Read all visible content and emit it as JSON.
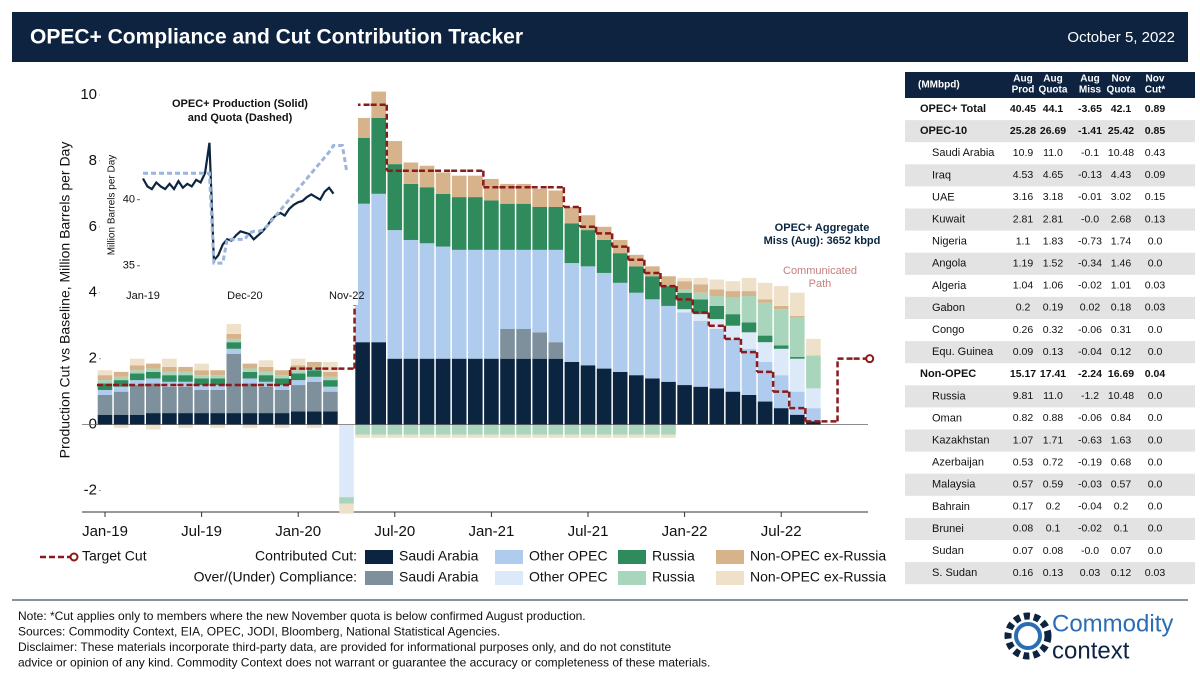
{
  "header": {
    "title": "OPEC+ Compliance and Cut Contribution Tracker",
    "date": "October 5, 2022"
  },
  "chart_data": [
    {
      "type": "stacked-bar",
      "ylabel": "Production Cut vs Baseline, Million Barrels per Day",
      "categories": [
        "Jan-19",
        null,
        null,
        null,
        null,
        null,
        "Jul-19",
        null,
        null,
        null,
        null,
        null,
        "Jan-20",
        null,
        null,
        null,
        null,
        null,
        "Jul-20",
        null,
        null,
        null,
        null,
        null,
        "Jan-21",
        null,
        null,
        null,
        null,
        null,
        "Jul-21",
        null,
        null,
        null,
        null,
        null,
        "Jan-22",
        null,
        null,
        null,
        null,
        null,
        "Jul-22",
        null,
        null,
        null,
        null,
        null
      ],
      "ylim": [
        -2.65,
        10.3
      ],
      "yticks": [
        -2,
        0,
        2,
        4,
        6,
        8,
        10
      ],
      "series_groups": [
        {
          "label": "Contributed Cut:",
          "series": [
            {
              "name": "Saudi Arabia",
              "color": "#0b2540",
              "values": [
                0.3,
                0.3,
                0.3,
                0.35,
                0.35,
                0.35,
                0.35,
                0.35,
                0.35,
                0.35,
                0.35,
                0.35,
                0.4,
                0.4,
                0.4,
                0,
                2.5,
                2.5,
                2.0,
                2.0,
                2.0,
                2.0,
                2.0,
                2.0,
                2.0,
                2.0,
                2.0,
                2.0,
                2.0,
                1.9,
                1.8,
                1.7,
                1.6,
                1.5,
                1.4,
                1.3,
                1.2,
                1.15,
                1.1,
                1.0,
                0.9,
                0.7,
                0.5,
                0.3,
                0.1,
                null,
                null,
                null
              ]
            },
            {
              "name": "Other OPEC",
              "color": "#afcbee",
              "values": [
                0.15,
                0.15,
                0.15,
                0.15,
                0.15,
                0.15,
                0.15,
                0.15,
                0.15,
                0.15,
                0.15,
                0.15,
                0.15,
                0.15,
                0.15,
                0,
                4.2,
                4.5,
                3.9,
                3.6,
                3.5,
                3.4,
                3.3,
                3.3,
                3.3,
                2.4,
                2.4,
                2.5,
                2.8,
                3.0,
                3.0,
                2.9,
                2.7,
                2.5,
                2.4,
                2.3,
                2.2,
                2.0,
                1.8,
                1.6,
                1.4,
                1.2,
                1.0,
                0.7,
                0.4,
                null,
                null,
                null
              ]
            },
            {
              "name": "Russia",
              "color": "#2f8a5c",
              "values": [
                0.2,
                0.2,
                0.2,
                0.2,
                0.2,
                0.2,
                0.2,
                0.2,
                0.2,
                0.2,
                0.2,
                0.2,
                0.2,
                0.2,
                0.2,
                0,
                2.0,
                2.3,
                2.0,
                1.7,
                1.7,
                1.6,
                1.6,
                1.6,
                1.5,
                1.4,
                1.4,
                1.3,
                1.3,
                1.2,
                1.1,
                1.0,
                0.9,
                0.8,
                0.7,
                0.6,
                0.5,
                0.45,
                0.4,
                0.35,
                0.3,
                0.2,
                0.1,
                0.05,
                0,
                null,
                null,
                null
              ]
            },
            {
              "name": "Non-OPEC ex-Russia",
              "color": "#d6b38a",
              "values": [
                0.15,
                0.15,
                0.15,
                0.15,
                0.15,
                0.15,
                0.15,
                0.15,
                0.15,
                0.15,
                0.15,
                0.15,
                0.15,
                0.15,
                0.15,
                0,
                0.6,
                0.8,
                0.7,
                0.65,
                0.65,
                0.65,
                0.65,
                0.65,
                0.65,
                0.6,
                0.6,
                0.55,
                0.5,
                0.5,
                0.45,
                0.4,
                0.4,
                0.35,
                0.3,
                0.3,
                0.25,
                0.25,
                0.2,
                0.2,
                0.15,
                0.1,
                0.1,
                0.05,
                0,
                null,
                null,
                null
              ]
            }
          ]
        },
        {
          "label": "Over/(Under) Compliance:",
          "series": [
            {
              "name": "Saudi Arabia",
              "color": "#7d909c",
              "values": [
                0.6,
                0.7,
                0.9,
                0.9,
                0.8,
                0.8,
                0.7,
                0.7,
                1.8,
                0.9,
                0.8,
                0.7,
                0.8,
                0.9,
                0.6,
                0,
                0,
                0,
                0,
                0,
                0,
                0,
                0,
                0,
                0,
                0.9,
                0.9,
                0.8,
                0.5,
                0,
                0,
                0,
                0,
                0,
                0,
                0,
                0,
                0,
                0,
                0,
                0,
                0,
                0,
                0,
                0,
                null,
                null,
                null
              ]
            },
            {
              "name": "Other OPEC",
              "color": "#dce9f8",
              "values": [
                0,
                0,
                0,
                0,
                0,
                0,
                0,
                0,
                0,
                0,
                0,
                0,
                0,
                0,
                0,
                -2.2,
                0,
                0,
                0,
                0,
                0,
                0,
                0,
                0,
                0,
                0,
                0,
                0,
                0,
                0,
                0,
                0,
                0,
                0,
                0,
                0,
                0.1,
                0.2,
                0.3,
                0.4,
                0.5,
                0.6,
                0.8,
                1.0,
                0.6,
                null,
                null,
                null
              ]
            },
            {
              "name": "Russia",
              "color": "#a9d5bc",
              "values": [
                0.1,
                0.1,
                0.1,
                0.1,
                0.1,
                0.1,
                0.1,
                0.1,
                0.1,
                0.1,
                0.1,
                0.1,
                0.1,
                0.1,
                0.1,
                -0.2,
                -0.3,
                -0.3,
                -0.3,
                -0.3,
                -0.3,
                -0.3,
                -0.3,
                -0.3,
                -0.3,
                -0.3,
                -0.3,
                -0.3,
                -0.3,
                -0.3,
                -0.3,
                -0.3,
                -0.3,
                -0.3,
                -0.3,
                -0.3,
                0.1,
                0.2,
                0.3,
                0.5,
                0.8,
                1.0,
                1.1,
                1.2,
                1.0,
                null,
                null,
                null
              ]
            },
            {
              "name": "Non-OPEC ex-Russia",
              "color": "#efe0c9",
              "values": [
                0.15,
                -0.1,
                0.2,
                -0.15,
                0.25,
                -0.1,
                0.2,
                -0.1,
                0.3,
                -0.1,
                0.2,
                -0.1,
                0.2,
                -0.1,
                0.3,
                -0.3,
                -0.1,
                -0.1,
                -0.1,
                -0.1,
                -0.1,
                -0.1,
                -0.1,
                -0.1,
                -0.1,
                -0.1,
                -0.1,
                -0.1,
                -0.1,
                -0.1,
                -0.1,
                -0.1,
                -0.1,
                -0.1,
                -0.1,
                -0.1,
                0.1,
                0.2,
                0.3,
                0.3,
                0.4,
                0.5,
                0.6,
                0.7,
                0.5,
                null,
                null,
                null
              ]
            }
          ]
        }
      ],
      "lines": [
        {
          "name": "Target Cut",
          "color": "#8b1a1a",
          "values": [
            1.2,
            1.2,
            1.2,
            1.2,
            1.2,
            1.2,
            1.2,
            1.2,
            1.2,
            1.2,
            1.2,
            1.2,
            1.7,
            1.7,
            1.7,
            1.7,
            9.7,
            9.7,
            7.7,
            7.7,
            7.7,
            7.7,
            7.7,
            7.7,
            7.2,
            7.2,
            7.2,
            7.2,
            7.2,
            6.6,
            6.0,
            5.8,
            5.4,
            5.0,
            4.6,
            4.2,
            3.8,
            3.4,
            3.0,
            2.6,
            2.2,
            1.6,
            1.0,
            0.5,
            0.1,
            0.1,
            2.0,
            2.0
          ]
        }
      ],
      "annotations": [
        {
          "lines": [
            "OPEC+ Aggregate",
            "Miss (Aug): 3652 kbpd"
          ],
          "color": "#0b2540"
        },
        {
          "lines": [
            "Communicated",
            "Path"
          ],
          "color": "#c47f7f"
        }
      ]
    },
    {
      "type": "line",
      "title": [
        "OPEC+ Production (Solid)",
        "and Quota (Dashed)"
      ],
      "ylabel": "Million Barrels per Day",
      "categories": [
        "Jan-19",
        null,
        null,
        null,
        null,
        null,
        null,
        null,
        null,
        null,
        null,
        null,
        null,
        null,
        null,
        null,
        null,
        null,
        null,
        null,
        null,
        null,
        null,
        "Dec-20",
        null,
        null,
        null,
        null,
        null,
        null,
        null,
        null,
        null,
        null,
        null,
        null,
        null,
        null,
        null,
        null,
        null,
        null,
        null,
        null,
        null,
        null,
        "Nov-22"
      ],
      "ylim": [
        34.3,
        45.8
      ],
      "yticks": [
        35,
        40
      ],
      "series": [
        {
          "name": "OPEC+ Production",
          "style": "solid",
          "color": "#0b2540",
          "values": [
            41.6,
            41.0,
            40.8,
            41.3,
            41.0,
            40.8,
            41.2,
            40.8,
            41.4,
            40.9,
            41.2,
            41.0,
            41.5,
            41.3,
            42.0,
            44.3,
            35.4,
            35.8,
            36.6,
            37.0,
            36.9,
            37.3,
            37.6,
            37.5,
            37.4,
            37.0,
            37.3,
            37.6,
            38.0,
            38.5,
            38.8,
            39.0,
            38.8,
            39.3,
            39.6,
            39.8,
            39.9,
            40.2,
            40.4,
            40.2,
            40.0,
            40.6,
            40.9,
            40.45,
            null,
            null,
            null
          ]
        },
        {
          "name": "Quota",
          "style": "dashed",
          "color": "#9db5da",
          "values": [
            42.0,
            42.0,
            42.0,
            42.0,
            42.0,
            42.0,
            42.0,
            42.0,
            42.0,
            42.0,
            42.0,
            42.0,
            42.0,
            42.0,
            42.0,
            42.0,
            35.2,
            35.2,
            35.2,
            37.0,
            37.0,
            37.0,
            37.0,
            37.0,
            37.5,
            37.6,
            37.6,
            37.7,
            38.0,
            38.4,
            38.8,
            39.2,
            39.6,
            40.0,
            40.4,
            40.8,
            41.2,
            41.6,
            42.0,
            42.4,
            42.8,
            43.2,
            43.6,
            44.1,
            44.1,
            44.1,
            42.1
          ]
        }
      ]
    }
  ],
  "table": {
    "columns": [
      [
        "(MMbpd)"
      ],
      [
        "Aug",
        "Prod"
      ],
      [
        "Aug",
        "Quota"
      ],
      [
        "Aug",
        "Miss"
      ],
      [
        "Nov",
        "Quota"
      ],
      [
        "Nov",
        "Cut*"
      ]
    ],
    "bold_rows": [
      0,
      1,
      12
    ],
    "rows": [
      [
        "OPEC+ Total",
        "40.45",
        "44.1",
        "-3.65",
        "42.1",
        "0.89"
      ],
      [
        "OPEC-10",
        "25.28",
        "26.69",
        "-1.41",
        "25.42",
        "0.85"
      ],
      [
        "Saudi Arabia",
        "10.9",
        "11.0",
        "-0.1",
        "10.48",
        "0.43"
      ],
      [
        "Iraq",
        "4.53",
        "4.65",
        "-0.13",
        "4.43",
        "0.09"
      ],
      [
        "UAE",
        "3.16",
        "3.18",
        "-0.01",
        "3.02",
        "0.15"
      ],
      [
        "Kuwait",
        "2.81",
        "2.81",
        "-0.0",
        "2.68",
        "0.13"
      ],
      [
        "Nigeria",
        "1.1",
        "1.83",
        "-0.73",
        "1.74",
        "0.0"
      ],
      [
        "Angola",
        "1.19",
        "1.52",
        "-0.34",
        "1.46",
        "0.0"
      ],
      [
        "Algeria",
        "1.04",
        "1.06",
        "-0.02",
        "1.01",
        "0.03"
      ],
      [
        "Gabon",
        "0.2",
        "0.19",
        "0.02",
        "0.18",
        "0.03"
      ],
      [
        "Congo",
        "0.26",
        "0.32",
        "-0.06",
        "0.31",
        "0.0"
      ],
      [
        "Equ. Guinea",
        "0.09",
        "0.13",
        "-0.04",
        "0.12",
        "0.0"
      ],
      [
        "Non-OPEC",
        "15.17",
        "17.41",
        "-2.24",
        "16.69",
        "0.04"
      ],
      [
        "Russia",
        "9.81",
        "11.0",
        "-1.2",
        "10.48",
        "0.0"
      ],
      [
        "Oman",
        "0.82",
        "0.88",
        "-0.06",
        "0.84",
        "0.0"
      ],
      [
        "Kazakhstan",
        "1.07",
        "1.71",
        "-0.63",
        "1.63",
        "0.0"
      ],
      [
        "Azerbaijan",
        "0.53",
        "0.72",
        "-0.19",
        "0.68",
        "0.0"
      ],
      [
        "Malaysia",
        "0.57",
        "0.59",
        "-0.03",
        "0.57",
        "0.0"
      ],
      [
        "Bahrain",
        "0.17",
        "0.2",
        "-0.04",
        "0.2",
        "0.0"
      ],
      [
        "Brunei",
        "0.08",
        "0.1",
        "-0.02",
        "0.1",
        "0.0"
      ],
      [
        "Sudan",
        "0.07",
        "0.08",
        "-0.0",
        "0.07",
        "0.0"
      ],
      [
        "S. Sudan",
        "0.16",
        "0.13",
        "0.03",
        "0.12",
        "0.03"
      ]
    ]
  },
  "notes": [
    "Note: *Cut applies only to members where the new November quota is below confirmed August production.",
    "Sources: Commodity Context, EIA, OPEC, JODI, Bloomberg, National Statistical Agencies.",
    "Disclaimer: These materials incorporate third-party data, are provided for informational purposes only, and do not constitute",
    "advice or opinion of any kind. Commodity Context does not warrant or guarantee the accuracy or completeness of these materials."
  ],
  "logo": [
    "Commodity",
    "context"
  ]
}
